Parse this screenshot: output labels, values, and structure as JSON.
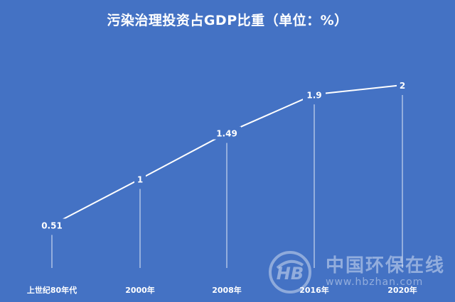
{
  "chart_data": {
    "type": "line",
    "title": "污染治理投资占GDP比重（单位：%）",
    "categories": [
      "上世纪80年代",
      "2000年",
      "2008年",
      "2016年",
      "2020年"
    ],
    "series": [
      {
        "values": [
          0.51,
          1,
          1.49,
          1.9,
          2
        ]
      }
    ],
    "data_labels": [
      "0.51",
      "1",
      "1.49",
      "1.9",
      "2"
    ],
    "xlabel": "",
    "ylabel": "",
    "ylim": [
      0,
      2.2
    ],
    "grid": false,
    "legend": "none",
    "colors": {
      "background": "#4472c4",
      "line": "#ffffff",
      "text": "#ffffff"
    }
  },
  "watermark": {
    "name": "中国环保在线",
    "url": "www.hbzhan.com"
  }
}
